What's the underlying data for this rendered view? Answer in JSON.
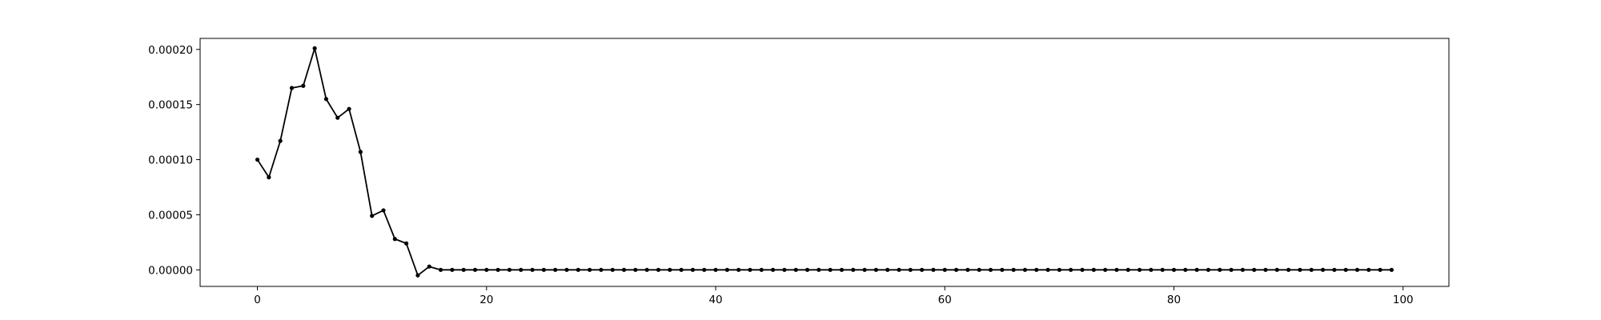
{
  "chart_data": {
    "type": "line",
    "title": "",
    "xlabel": "",
    "ylabel": "",
    "x_ticks": [
      {
        "value": 0,
        "label": "0"
      },
      {
        "value": 20,
        "label": "20"
      },
      {
        "value": 40,
        "label": "40"
      },
      {
        "value": 60,
        "label": "60"
      },
      {
        "value": 80,
        "label": "80"
      },
      {
        "value": 100,
        "label": "100"
      }
    ],
    "y_ticks": [
      {
        "value": 0.0,
        "label": "0.00000"
      },
      {
        "value": 5e-05,
        "label": "0.00005"
      },
      {
        "value": 0.0001,
        "label": "0.00010"
      },
      {
        "value": 0.00015,
        "label": "0.00015"
      },
      {
        "value": 0.0002,
        "label": "0.00020"
      }
    ],
    "xlim": [
      -5,
      104
    ],
    "ylim": [
      -1.5e-05,
      0.00021
    ],
    "grid": false,
    "legend": "none",
    "series": [
      {
        "color": "#000000",
        "marker": "dot",
        "x": [
          0,
          1,
          2,
          3,
          4,
          5,
          6,
          7,
          8,
          9,
          10,
          11,
          12,
          13,
          14,
          15,
          16,
          17,
          18,
          19,
          20,
          21,
          22,
          23,
          24,
          25,
          26,
          27,
          28,
          29,
          30,
          31,
          32,
          33,
          34,
          35,
          36,
          37,
          38,
          39,
          40,
          41,
          42,
          43,
          44,
          45,
          46,
          47,
          48,
          49,
          50,
          51,
          52,
          53,
          54,
          55,
          56,
          57,
          58,
          59,
          60,
          61,
          62,
          63,
          64,
          65,
          66,
          67,
          68,
          69,
          70,
          71,
          72,
          73,
          74,
          75,
          76,
          77,
          78,
          79,
          80,
          81,
          82,
          83,
          84,
          85,
          86,
          87,
          88,
          89,
          90,
          91,
          92,
          93,
          94,
          95,
          96,
          97,
          98,
          99
        ],
        "y": [
          0.0001,
          8.4e-05,
          0.000117,
          0.000165,
          0.000167,
          0.000201,
          0.000155,
          0.000138,
          0.000146,
          0.000107,
          4.9e-05,
          5.4e-05,
          2.8e-05,
          2.4e-05,
          -5e-06,
          3e-06,
          0.0,
          0.0,
          0.0,
          0.0,
          0.0,
          0.0,
          0.0,
          0.0,
          0.0,
          0.0,
          0.0,
          0.0,
          0.0,
          0.0,
          0.0,
          0.0,
          0.0,
          0.0,
          0.0,
          0.0,
          0.0,
          0.0,
          0.0,
          0.0,
          0.0,
          0.0,
          0.0,
          0.0,
          0.0,
          0.0,
          0.0,
          0.0,
          0.0,
          0.0,
          0.0,
          0.0,
          0.0,
          0.0,
          0.0,
          0.0,
          0.0,
          0.0,
          0.0,
          0.0,
          0.0,
          0.0,
          0.0,
          0.0,
          0.0,
          0.0,
          0.0,
          0.0,
          0.0,
          0.0,
          0.0,
          0.0,
          0.0,
          0.0,
          0.0,
          0.0,
          0.0,
          0.0,
          0.0,
          0.0,
          0.0,
          0.0,
          0.0,
          0.0,
          0.0,
          0.0,
          0.0,
          0.0,
          0.0,
          0.0,
          0.0,
          0.0,
          0.0,
          0.0,
          0.0,
          0.0,
          0.0,
          0.0,
          0.0,
          0.0
        ]
      }
    ]
  }
}
